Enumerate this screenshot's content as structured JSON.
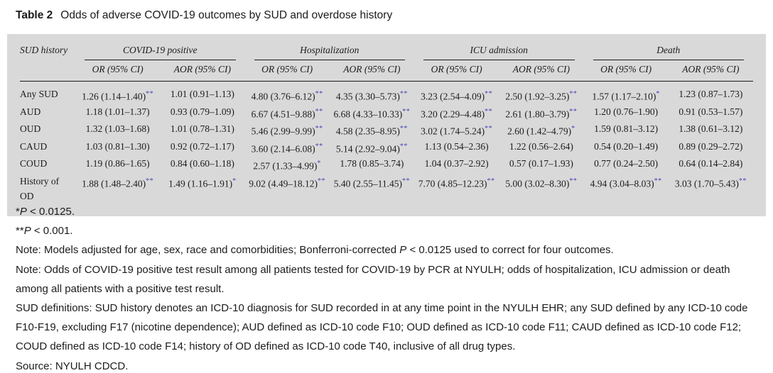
{
  "title": {
    "label": "Table 2",
    "text": "Odds of adverse COVID-19 outcomes by SUD and overdose history"
  },
  "colors": {
    "table_bg": "#d9d9d9",
    "sig_asterisk": "#4646b4",
    "text": "#1c1c1c"
  },
  "table": {
    "row_header": "SUD history",
    "groups": [
      "COVID-19 positive",
      "Hospitalization",
      "ICU admission",
      "Death"
    ],
    "subheaders": [
      "OR (95% CI)",
      "AOR (95% CI)"
    ],
    "rows": [
      {
        "label": "Any SUD",
        "cells": [
          {
            "v": "1.26 (1.14–1.40)",
            "s": "**"
          },
          {
            "v": "1.01 (0.91–1.13)",
            "s": ""
          },
          {
            "v": "4.80 (3.76–6.12)",
            "s": "**"
          },
          {
            "v": "4.35 (3.30–5.73)",
            "s": "**"
          },
          {
            "v": "3.23 (2.54–4.09)",
            "s": "**"
          },
          {
            "v": "2.50 (1.92–3.25)",
            "s": "**"
          },
          {
            "v": "1.57 (1.17–2.10)",
            "s": "*"
          },
          {
            "v": "1.23 (0.87–1.73)",
            "s": ""
          }
        ]
      },
      {
        "label": "AUD",
        "cells": [
          {
            "v": "1.18 (1.01–1.37)",
            "s": ""
          },
          {
            "v": "0.93 (0.79–1.09)",
            "s": ""
          },
          {
            "v": "6.67 (4.51–9.88)",
            "s": "**"
          },
          {
            "v": "6.68 (4.33–10.33)",
            "s": "**"
          },
          {
            "v": "3.20 (2.29–4.48)",
            "s": "**"
          },
          {
            "v": "2.61 (1.80–3.79)",
            "s": "**"
          },
          {
            "v": "1.20 (0.76–1.90)",
            "s": ""
          },
          {
            "v": "0.91 (0.53–1.57)",
            "s": ""
          }
        ]
      },
      {
        "label": "OUD",
        "cells": [
          {
            "v": "1.32 (1.03–1.68)",
            "s": ""
          },
          {
            "v": "1.01 (0.78–1.31)",
            "s": ""
          },
          {
            "v": "5.46 (2.99–9.99)",
            "s": "**"
          },
          {
            "v": "4.58 (2.35–8.95)",
            "s": "**"
          },
          {
            "v": "3.02 (1.74–5.24)",
            "s": "**"
          },
          {
            "v": "2.60 (1.42–4.79)",
            "s": "*"
          },
          {
            "v": "1.59 (0.81–3.12)",
            "s": ""
          },
          {
            "v": "1.38 (0.61–3.12)",
            "s": ""
          }
        ]
      },
      {
        "label": "CAUD",
        "cells": [
          {
            "v": "1.03 (0.81–1.30)",
            "s": ""
          },
          {
            "v": "0.92 (0.72–1.17)",
            "s": ""
          },
          {
            "v": "3.60 (2.14–6.08)",
            "s": "**"
          },
          {
            "v": "5.14 (2.92–9.04)",
            "s": "**"
          },
          {
            "v": "1.13 (0.54–2.36)",
            "s": ""
          },
          {
            "v": "1.22 (0.56–2.64)",
            "s": ""
          },
          {
            "v": "0.54 (0.20–1.49)",
            "s": ""
          },
          {
            "v": "0.89 (0.29–2.72)",
            "s": ""
          }
        ]
      },
      {
        "label": "COUD",
        "cells": [
          {
            "v": "1.19 (0.86–1.65)",
            "s": ""
          },
          {
            "v": "0.84 (0.60–1.18)",
            "s": ""
          },
          {
            "v": "2.57 (1.33–4.99)",
            "s": "*"
          },
          {
            "v": "1.78 (0.85–3.74)",
            "s": ""
          },
          {
            "v": "1.04 (0.37–2.92)",
            "s": ""
          },
          {
            "v": "0.57 (0.17–1.93)",
            "s": ""
          },
          {
            "v": "0.77 (0.24–2.50)",
            "s": ""
          },
          {
            "v": "0.64 (0.14–2.84)",
            "s": ""
          }
        ]
      },
      {
        "label": "History of OD",
        "cells": [
          {
            "v": "1.88 (1.48–2.40)",
            "s": "**"
          },
          {
            "v": "1.49 (1.16–1.91)",
            "s": "*"
          },
          {
            "v": "9.02 (4.49–18.12)",
            "s": "**"
          },
          {
            "v": "5.40 (2.55–11.45)",
            "s": "**"
          },
          {
            "v": "7.70 (4.85–12.23)",
            "s": "**"
          },
          {
            "v": "5.00 (3.02–8.30)",
            "s": "**"
          },
          {
            "v": "4.94 (3.04–8.03)",
            "s": "**"
          },
          {
            "v": "3.03 (1.70–5.43)",
            "s": "**"
          }
        ]
      }
    ]
  },
  "footnotes": [
    {
      "segments": [
        {
          "t": "*"
        },
        {
          "t": "P",
          "i": true
        },
        {
          "t": " < 0.0125."
        }
      ]
    },
    {
      "segments": [
        {
          "t": "**"
        },
        {
          "t": "P",
          "i": true
        },
        {
          "t": " < 0.001."
        }
      ]
    },
    {
      "segments": [
        {
          "t": "Note: Models adjusted for age, sex, race and comorbidities; Bonferroni-corrected "
        },
        {
          "t": "P",
          "i": true
        },
        {
          "t": " < 0.0125 used to correct for four outcomes."
        }
      ]
    },
    {
      "segments": [
        {
          "t": "Note: Odds of COVID-19 positive test result among all patients tested for COVID-19 by PCR at NYULH; odds of hospitalization, ICU admission or death among all patients with a positive test result."
        }
      ]
    },
    {
      "segments": [
        {
          "t": "SUD definitions: SUD history denotes an ICD-10 diagnosis for SUD recorded in at any time point in the NYULH EHR; any SUD defined by any ICD-10 code F10-F19, excluding F17 (nicotine dependence); AUD defined as ICD-10 code F10; OUD defined as ICD-10 code F11; CAUD defined as ICD-10 code F12; COUD defined as ICD-10 code F14; history of OD defined as ICD-10 code T40, inclusive of all drug types."
        }
      ]
    },
    {
      "segments": [
        {
          "t": "Source: NYULH CDCD."
        }
      ]
    }
  ]
}
